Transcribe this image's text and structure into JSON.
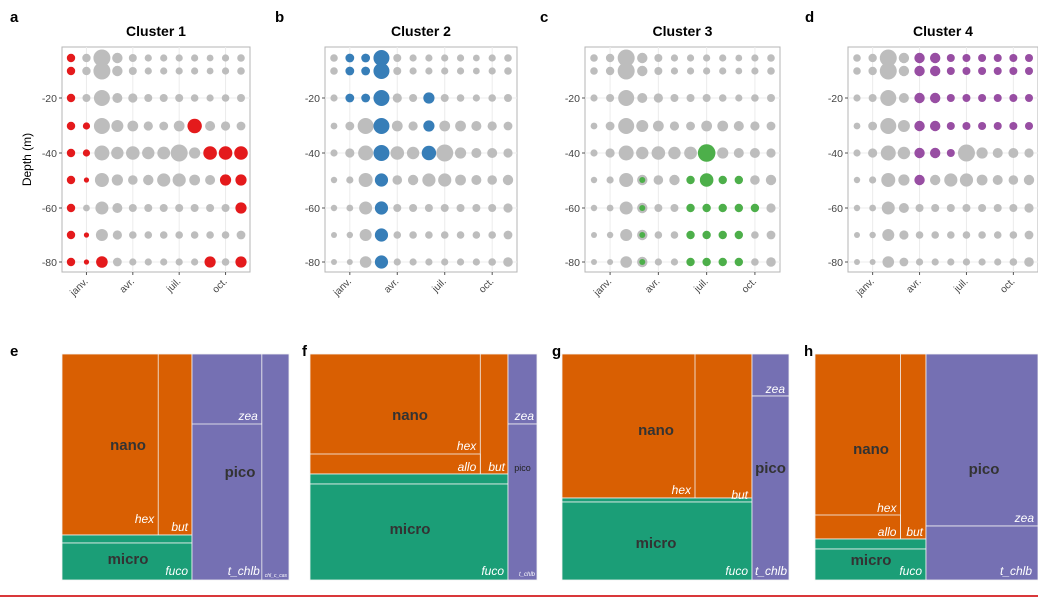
{
  "panel_letters": [
    "a",
    "b",
    "c",
    "d",
    "e",
    "f",
    "g",
    "h"
  ],
  "shared": {
    "ylabel": "Depth (m)",
    "y_ticks": [
      -20,
      -40,
      -60,
      -80
    ],
    "x_ticks": [
      "janv.",
      "avr.",
      "juil.",
      "oct."
    ],
    "depths": [
      -5,
      -10,
      -20,
      -30,
      -40,
      -50,
      -60,
      -70,
      -80
    ],
    "highlight_colors": [
      "#e41a1c",
      "#377eb8",
      "#4daf4a",
      "#984ea3"
    ],
    "grey": "#bdbdbd",
    "treemap_colors": {
      "nano": "#d95f02",
      "micro": "#1b9e77",
      "pico": "#7570b3"
    }
  },
  "chart_data": [
    {
      "type": "scatter",
      "title": "Cluster 1",
      "highlight": [
        [
          0,
          0
        ],
        [
          0,
          1
        ],
        [
          0,
          2
        ],
        [
          0,
          3
        ],
        [
          0,
          4
        ],
        [
          0,
          5
        ],
        [
          0,
          6
        ],
        [
          0,
          7
        ],
        [
          0,
          8
        ],
        [
          1,
          3
        ],
        [
          1,
          4
        ],
        [
          1,
          5
        ],
        [
          1,
          7
        ],
        [
          1,
          8
        ],
        [
          2,
          8
        ],
        [
          8,
          3
        ],
        [
          9,
          4
        ],
        [
          9,
          8
        ],
        [
          10,
          4
        ],
        [
          10,
          5
        ],
        [
          11,
          4
        ],
        [
          11,
          5
        ],
        [
          11,
          6
        ],
        [
          11,
          8
        ]
      ]
    },
    {
      "type": "scatter",
      "title": "Cluster 2",
      "highlight": [
        [
          1,
          0
        ],
        [
          1,
          1
        ],
        [
          1,
          2
        ],
        [
          2,
          0
        ],
        [
          2,
          1
        ],
        [
          2,
          2
        ],
        [
          3,
          0
        ],
        [
          3,
          1
        ],
        [
          3,
          2
        ],
        [
          3,
          3
        ],
        [
          3,
          4
        ],
        [
          3,
          5
        ],
        [
          3,
          6
        ],
        [
          3,
          7
        ],
        [
          3,
          8
        ],
        [
          6,
          2
        ],
        [
          6,
          3
        ],
        [
          6,
          4
        ]
      ]
    },
    {
      "type": "scatter",
      "title": "Cluster 3",
      "highlight": [
        [
          3,
          5
        ],
        [
          3,
          6
        ],
        [
          3,
          7
        ],
        [
          3,
          8
        ],
        [
          6,
          5
        ],
        [
          6,
          6
        ],
        [
          6,
          7
        ],
        [
          6,
          8
        ],
        [
          7,
          4
        ],
        [
          7,
          5
        ],
        [
          7,
          6
        ],
        [
          7,
          7
        ],
        [
          7,
          8
        ],
        [
          8,
          5
        ],
        [
          8,
          6
        ],
        [
          8,
          7
        ],
        [
          8,
          8
        ],
        [
          9,
          5
        ],
        [
          9,
          6
        ],
        [
          9,
          7
        ],
        [
          9,
          8
        ],
        [
          10,
          6
        ]
      ]
    },
    {
      "type": "scatter",
      "title": "Cluster 4",
      "highlight": [
        [
          4,
          0
        ],
        [
          4,
          1
        ],
        [
          4,
          2
        ],
        [
          4,
          3
        ],
        [
          4,
          4
        ],
        [
          4,
          5
        ],
        [
          5,
          0
        ],
        [
          5,
          1
        ],
        [
          5,
          2
        ],
        [
          5,
          3
        ],
        [
          5,
          4
        ],
        [
          6,
          0
        ],
        [
          6,
          1
        ],
        [
          6,
          2
        ],
        [
          6,
          3
        ],
        [
          6,
          4
        ],
        [
          7,
          0
        ],
        [
          7,
          1
        ],
        [
          7,
          2
        ],
        [
          7,
          3
        ],
        [
          8,
          0
        ],
        [
          8,
          1
        ],
        [
          8,
          2
        ],
        [
          8,
          3
        ],
        [
          9,
          0
        ],
        [
          9,
          1
        ],
        [
          9,
          2
        ],
        [
          9,
          3
        ],
        [
          10,
          0
        ],
        [
          10,
          1
        ],
        [
          10,
          2
        ],
        [
          10,
          3
        ],
        [
          11,
          0
        ],
        [
          11,
          1
        ],
        [
          11,
          2
        ],
        [
          11,
          3
        ]
      ]
    },
    {
      "type": "treemap",
      "groups": [
        {
          "name": "nano",
          "color": "#d95f02",
          "share": 0.57,
          "items": [
            {
              "label": "hex",
              "share": 0.86
            },
            {
              "label": "but",
              "share": 0.14
            }
          ]
        },
        {
          "name": "micro",
          "color": "#1b9e77",
          "share": 0.043,
          "items": [
            {
              "label": "fuco",
              "share": 1.0
            }
          ]
        },
        {
          "name": "pico",
          "color": "#7570b3",
          "share": 0.3,
          "items": [
            {
              "label": "zea",
              "share": 0.3
            },
            {
              "label": "t_chlb",
              "share": 0.55
            },
            {
              "label": "chl_c_cas",
              "share": 0.15
            }
          ]
        }
      ]
    },
    {
      "type": "treemap",
      "groups": [
        {
          "name": "nano",
          "color": "#d95f02",
          "share": 0.43,
          "items": [
            {
              "label": "hex",
              "share": 0.68
            },
            {
              "label": "allo",
              "share": 0.22
            },
            {
              "label": "but",
              "share": 0.1
            }
          ]
        },
        {
          "name": "micro",
          "color": "#1b9e77",
          "share": 0.43,
          "items": [
            {
              "label": "fuco",
              "share": 1.0
            }
          ]
        },
        {
          "name": "pico",
          "color": "#7570b3",
          "share": 0.14,
          "items": [
            {
              "label": "zea",
              "share": 0.3
            },
            {
              "label": "t_chlb",
              "share": 0.7
            }
          ]
        }
      ]
    },
    {
      "type": "treemap",
      "groups": [
        {
          "name": "nano",
          "color": "#d95f02",
          "share": 0.5,
          "items": [
            {
              "label": "hex",
              "share": 0.7
            },
            {
              "label": "but",
              "share": 0.3
            }
          ]
        },
        {
          "name": "micro",
          "color": "#1b9e77",
          "share": 0.35,
          "items": [
            {
              "label": "fuco",
              "share": 1.0
            }
          ]
        },
        {
          "name": "pico",
          "color": "#7570b3",
          "share": 0.15,
          "items": [
            {
              "label": "zea",
              "share": 0.15
            },
            {
              "label": "t_chlb",
              "share": 0.85
            }
          ]
        }
      ]
    },
    {
      "type": "treemap",
      "groups": [
        {
          "name": "nano",
          "color": "#d95f02",
          "share": 0.37,
          "items": [
            {
              "label": "hex",
              "share": 0.71
            },
            {
              "label": "allo",
              "share": 0.17
            },
            {
              "label": "but",
              "share": 0.12
            }
          ]
        },
        {
          "name": "micro",
          "color": "#1b9e77",
          "share": 0.13,
          "items": [
            {
              "label": "fuco",
              "share": 1.0
            }
          ]
        },
        {
          "name": "pico",
          "color": "#7570b3",
          "share": 0.5,
          "items": [
            {
              "label": "zea",
              "share": 0.78
            },
            {
              "label": "t_chlb",
              "share": 0.22
            }
          ]
        }
      ]
    }
  ]
}
